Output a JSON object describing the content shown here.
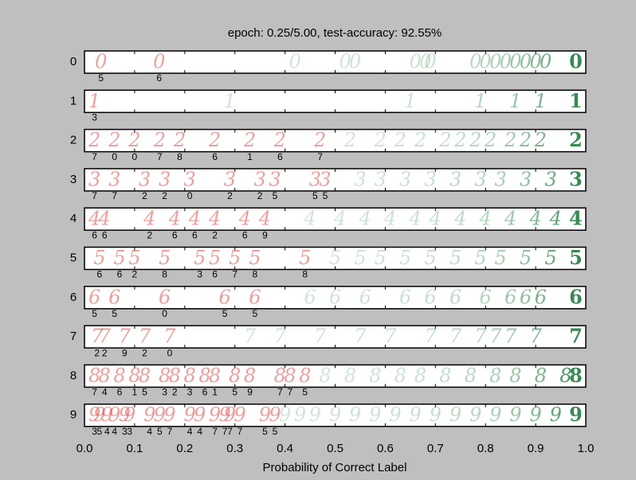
{
  "chart_data": {
    "type": "strip",
    "title": "epoch: 0.25/5.00, test-accuracy: 92.55%",
    "x_label": "Probability of Correct Label",
    "categories": [
      "0",
      "1",
      "2",
      "3",
      "4",
      "5",
      "6",
      "7",
      "8",
      "9"
    ],
    "xlim": [
      0,
      1
    ],
    "xticks": [
      {
        "value": 0,
        "label": "0.0"
      },
      0.1,
      0.2,
      0.3,
      0.4,
      0.5,
      0.6,
      0.7,
      0.8,
      0.9,
      {
        "value": 1,
        "label": "1.0"
      }
    ],
    "wrong_color": "#d9534f",
    "right_color": "#1e7b3c",
    "rows": [
      {
        "wrong": {
          "x": [
            0.033,
            0.149
          ],
          "predicted": [
            "5",
            "6"
          ]
        },
        "right": {
          "x": [
            0.42,
            0.52,
            0.54,
            0.66,
            0.68,
            0.69,
            0.78,
            0.8,
            0.82,
            0.84,
            0.86,
            0.88,
            0.9,
            0.92,
            0.98
          ]
        }
      },
      {
        "wrong": {
          "x": [
            0.02
          ],
          "predicted": [
            "3"
          ]
        },
        "right": {
          "x": [
            0.29,
            0.65,
            0.79,
            0.86,
            0.91,
            0.98
          ]
        }
      },
      {
        "wrong": {
          "x": [
            0.02,
            0.06,
            0.1,
            0.15,
            0.19,
            0.26,
            0.33,
            0.39,
            0.47
          ],
          "predicted": [
            "7",
            "0",
            "0",
            "7",
            "8",
            "6",
            "1",
            "6",
            "7"
          ]
        },
        "right": {
          "x": [
            0.53,
            0.59,
            0.63,
            0.67,
            0.72,
            0.75,
            0.78,
            0.81,
            0.85,
            0.88,
            0.91,
            0.98
          ]
        }
      },
      {
        "wrong": {
          "x": [
            0.02,
            0.06,
            0.12,
            0.16,
            0.21,
            0.29,
            0.35,
            0.38,
            0.46,
            0.48
          ],
          "predicted": [
            "7",
            "7",
            "2",
            "2",
            "0",
            "2",
            "2",
            "5",
            "5",
            "5"
          ]
        },
        "right": {
          "x": [
            0.55,
            0.59,
            0.64,
            0.69,
            0.74,
            0.79,
            0.83,
            0.88,
            0.93,
            0.98
          ]
        }
      },
      {
        "wrong": {
          "x": [
            0.02,
            0.04,
            0.13,
            0.18,
            0.22,
            0.26,
            0.32,
            0.36
          ],
          "predicted": [
            "6",
            "6",
            "2",
            "6",
            "6",
            "2",
            "6",
            "9"
          ]
        },
        "right": {
          "x": [
            0.45,
            0.51,
            0.56,
            0.61,
            0.66,
            0.7,
            0.75,
            0.8,
            0.85,
            0.9,
            0.94,
            0.98
          ]
        }
      },
      {
        "wrong": {
          "x": [
            0.03,
            0.07,
            0.1,
            0.16,
            0.23,
            0.26,
            0.3,
            0.34,
            0.44
          ],
          "predicted": [
            "6",
            "6",
            "2",
            "8",
            "3",
            "6",
            "7",
            "8",
            "8"
          ]
        },
        "right": {
          "x": [
            0.5,
            0.55,
            0.59,
            0.64,
            0.69,
            0.74,
            0.79,
            0.83,
            0.88,
            0.93,
            0.98
          ]
        }
      },
      {
        "wrong": {
          "x": [
            0.02,
            0.06,
            0.16,
            0.28,
            0.34
          ],
          "predicted": [
            "5",
            "5",
            "0",
            "5",
            "5"
          ]
        },
        "right": {
          "x": [
            0.45,
            0.5,
            0.56,
            0.64,
            0.69,
            0.74,
            0.8,
            0.85,
            0.88,
            0.91,
            0.98
          ]
        }
      },
      {
        "wrong": {
          "x": [
            0.025,
            0.04,
            0.08,
            0.12,
            0.17
          ],
          "predicted": [
            "2",
            "2",
            "9",
            "2",
            "0"
          ]
        },
        "right": {
          "x": [
            0.33,
            0.39,
            0.47,
            0.55,
            0.61,
            0.69,
            0.74,
            0.79,
            0.82,
            0.85,
            0.9,
            0.98
          ]
        }
      },
      {
        "wrong": {
          "x": [
            0.02,
            0.04,
            0.07,
            0.1,
            0.12,
            0.16,
            0.18,
            0.21,
            0.24,
            0.26,
            0.3,
            0.33,
            0.39,
            0.41,
            0.44
          ],
          "predicted": [
            "7",
            "4",
            "6",
            "1",
            "5",
            "3",
            "2",
            "3",
            "6",
            "1",
            "5",
            "9",
            "7",
            "7",
            "5"
          ]
        },
        "right": {
          "x": [
            0.48,
            0.53,
            0.58,
            0.63,
            0.67,
            0.72,
            0.77,
            0.82,
            0.86,
            0.91,
            0.96,
            0.98
          ]
        }
      },
      {
        "wrong": {
          "x": [
            0.02,
            0.03,
            0.045,
            0.06,
            0.08,
            0.09,
            0.13,
            0.15,
            0.17,
            0.21,
            0.23,
            0.26,
            0.28,
            0.29,
            0.31,
            0.36,
            0.38
          ],
          "predicted": [
            "3",
            "5",
            "4",
            "4",
            "3",
            "3",
            "4",
            "5",
            "7",
            "4",
            "4",
            "7",
            "7",
            "7",
            "7",
            "5",
            "5"
          ]
        },
        "right": {
          "x": [
            0.4,
            0.43,
            0.46,
            0.5,
            0.54,
            0.58,
            0.62,
            0.66,
            0.7,
            0.74,
            0.78,
            0.82,
            0.86,
            0.9,
            0.94,
            0.98
          ]
        }
      }
    ]
  }
}
